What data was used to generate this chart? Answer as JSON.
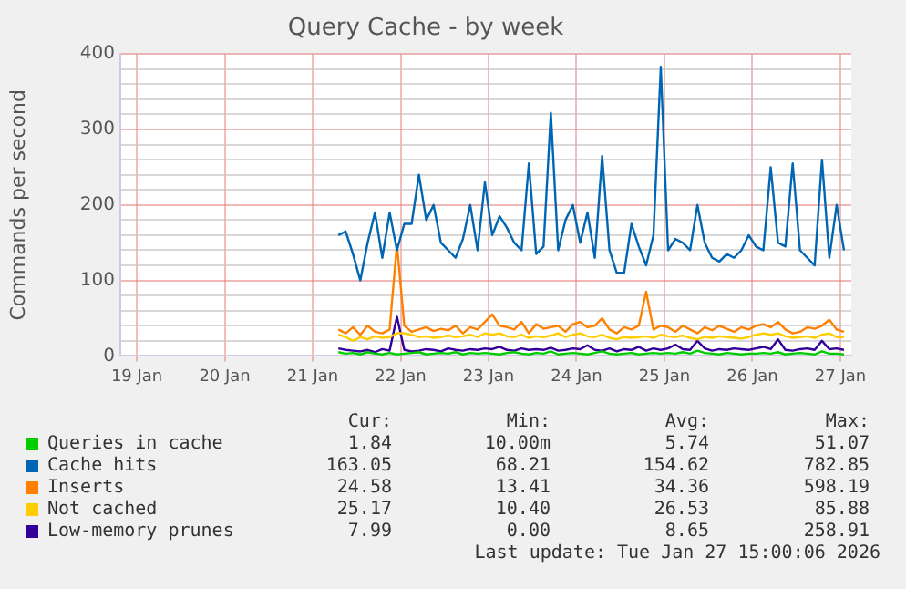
{
  "chart_data": {
    "type": "line",
    "title": "Query Cache - by week",
    "ylabel": "Commands per second",
    "x": [
      "--01-21T07:00",
      "--01-21T09:00",
      "--01-21T11:00",
      "--01-21T13:00",
      "--01-21T15:00",
      "--01-21T17:00",
      "--01-21T19:00",
      "--01-21T21:00",
      "--01-21T23:00",
      "--01-22T01:00",
      "--01-22T03:00",
      "--01-22T05:00",
      "--01-22T07:00",
      "--01-22T09:00",
      "--01-22T11:00",
      "--01-22T13:00",
      "--01-22T15:00",
      "--01-22T17:00",
      "--01-22T19:00",
      "--01-22T21:00",
      "--01-22T23:00",
      "--01-23T01:00",
      "--01-23T03:00",
      "--01-23T05:00",
      "--01-23T07:00",
      "--01-23T09:00",
      "--01-23T11:00",
      "--01-23T13:00",
      "--01-23T15:00",
      "--01-23T17:00",
      "--01-23T19:00",
      "--01-23T21:00",
      "--01-23T23:00",
      "--01-24T01:00",
      "--01-24T03:00",
      "--01-24T05:00",
      "--01-24T07:00",
      "--01-24T09:00",
      "--01-24T11:00",
      "--01-24T13:00",
      "--01-24T15:00",
      "--01-24T17:00",
      "--01-24T19:00",
      "--01-24T21:00",
      "--01-24T23:00",
      "--01-25T01:00",
      "--01-25T03:00",
      "--01-25T05:00",
      "--01-25T07:00",
      "--01-25T09:00",
      "--01-25T11:00",
      "--01-25T13:00",
      "--01-25T15:00",
      "--01-25T17:00",
      "--01-25T19:00",
      "--01-25T21:00",
      "--01-25T23:00",
      "--01-26T01:00",
      "--01-26T03:00",
      "--01-26T05:00",
      "--01-26T07:00",
      "--01-26T09:00",
      "--01-26T11:00",
      "--01-26T13:00",
      "--01-26T15:00",
      "--01-26T17:00",
      "--01-26T19:00",
      "--01-26T21:00",
      "--01-26T23:00",
      "--01-27T01:00"
    ],
    "series": [
      {
        "name": "Queries in cache",
        "color": "#00cc00",
        "values": [
          5,
          3,
          4,
          2,
          5,
          3,
          2,
          4,
          2,
          3,
          4,
          5,
          2,
          3,
          4,
          3,
          5,
          2,
          4,
          3,
          4,
          3,
          2,
          4,
          5,
          3,
          2,
          4,
          3,
          6,
          2,
          3,
          4,
          3,
          2,
          4,
          6,
          3,
          2,
          3,
          4,
          2,
          3,
          4,
          3,
          4,
          3,
          5,
          3,
          7,
          4,
          3,
          2,
          4,
          3,
          2,
          3,
          3,
          4,
          3,
          5,
          2,
          3,
          4,
          3,
          2,
          6,
          3,
          3,
          2
        ]
      },
      {
        "name": "Cache hits",
        "color": "#0066b3",
        "values": [
          160,
          165,
          135,
          100,
          150,
          190,
          130,
          190,
          140,
          175,
          175,
          240,
          180,
          200,
          150,
          140,
          130,
          155,
          200,
          140,
          230,
          160,
          185,
          170,
          150,
          140,
          255,
          135,
          145,
          322,
          140,
          180,
          200,
          150,
          190,
          130,
          265,
          140,
          110,
          110,
          175,
          145,
          120,
          160,
          383,
          140,
          155,
          150,
          140,
          200,
          150,
          130,
          125,
          135,
          130,
          140,
          160,
          145,
          140,
          250,
          150,
          145,
          255,
          140,
          130,
          120,
          260,
          130,
          200,
          140
        ]
      },
      {
        "name": "Inserts",
        "color": "#ff8000",
        "values": [
          35,
          30,
          38,
          28,
          40,
          32,
          30,
          35,
          148,
          40,
          32,
          35,
          38,
          33,
          36,
          34,
          40,
          30,
          38,
          35,
          45,
          55,
          40,
          38,
          35,
          45,
          30,
          42,
          36,
          38,
          40,
          32,
          42,
          45,
          38,
          40,
          50,
          35,
          30,
          38,
          35,
          40,
          85,
          35,
          40,
          38,
          32,
          40,
          35,
          30,
          38,
          34,
          40,
          36,
          32,
          38,
          35,
          40,
          42,
          38,
          45,
          35,
          30,
          32,
          38,
          36,
          40,
          48,
          35,
          32
        ]
      },
      {
        "name": "Not cached",
        "color": "#ffcc00",
        "values": [
          28,
          25,
          20,
          25,
          22,
          26,
          24,
          25,
          30,
          30,
          28,
          25,
          26,
          24,
          25,
          27,
          25,
          26,
          28,
          25,
          30,
          28,
          30,
          26,
          25,
          28,
          24,
          26,
          25,
          27,
          30,
          25,
          28,
          30,
          26,
          25,
          28,
          24,
          22,
          25,
          24,
          25,
          26,
          24,
          28,
          26,
          25,
          27,
          24,
          22,
          25,
          24,
          26,
          25,
          24,
          23,
          25,
          28,
          30,
          28,
          30,
          26,
          24,
          25,
          26,
          24,
          28,
          30,
          25,
          25
        ]
      },
      {
        "name": "Low-memory prunes",
        "color": "#330099",
        "values": [
          10,
          8,
          7,
          6,
          8,
          5,
          9,
          7,
          52,
          8,
          6,
          7,
          9,
          8,
          6,
          10,
          8,
          7,
          9,
          8,
          10,
          9,
          12,
          8,
          7,
          10,
          8,
          9,
          8,
          11,
          7,
          8,
          10,
          9,
          14,
          8,
          7,
          10,
          6,
          9,
          8,
          12,
          7,
          10,
          8,
          10,
          15,
          9,
          8,
          20,
          10,
          7,
          9,
          8,
          10,
          9,
          8,
          10,
          12,
          9,
          22,
          8,
          7,
          9,
          10,
          8,
          20,
          9,
          10,
          8
        ]
      }
    ],
    "xlim": [
      "--01-18T19:30",
      "--01-27T03:00"
    ],
    "xticks": [
      {
        "value": "--01-19",
        "label": "19 Jan"
      },
      {
        "value": "--01-20",
        "label": "20 Jan"
      },
      {
        "value": "--01-21",
        "label": "21 Jan"
      },
      {
        "value": "--01-22",
        "label": "22 Jan"
      },
      {
        "value": "--01-23",
        "label": "23 Jan"
      },
      {
        "value": "--01-24",
        "label": "24 Jan"
      },
      {
        "value": "--01-25",
        "label": "25 Jan"
      },
      {
        "value": "--01-26",
        "label": "26 Jan"
      },
      {
        "value": "--01-27",
        "label": "27 Jan"
      }
    ],
    "ylim": [
      0,
      400
    ],
    "yticks": [
      0,
      {
        "value": 20,
        "label": null
      },
      {
        "value": 40,
        "label": null
      },
      {
        "value": 60,
        "label": null
      },
      {
        "value": 80,
        "label": null
      },
      100,
      {
        "value": 120,
        "label": null
      },
      {
        "value": 140,
        "label": null
      },
      {
        "value": 160,
        "label": null
      },
      {
        "value": 180,
        "label": null
      },
      200,
      {
        "value": 220,
        "label": null
      },
      {
        "value": 240,
        "label": null
      },
      {
        "value": 260,
        "label": null
      },
      {
        "value": 280,
        "label": null
      },
      300,
      {
        "value": 320,
        "label": null
      },
      {
        "value": 340,
        "label": null
      },
      {
        "value": 360,
        "label": null
      },
      {
        "value": 380,
        "label": null
      },
      400
    ],
    "grid": true,
    "legend": "bottom",
    "marker": "none",
    "line_style": "solid",
    "annotations": [
      "Cur:",
      "Min:",
      "Avg:",
      "Max:",
      "1.84",
      "10.00m",
      "5.74",
      "51.07",
      "163.05",
      "68.21",
      "154.62",
      "782.85",
      "24.58",
      "13.41",
      "34.36",
      "598.19",
      "25.17",
      "10.40",
      "26.53",
      "85.88",
      "7.99",
      "0.00",
      "8.65",
      "258.91",
      "Last update: Tue Jan 27 15:00:06 2026"
    ]
  }
}
